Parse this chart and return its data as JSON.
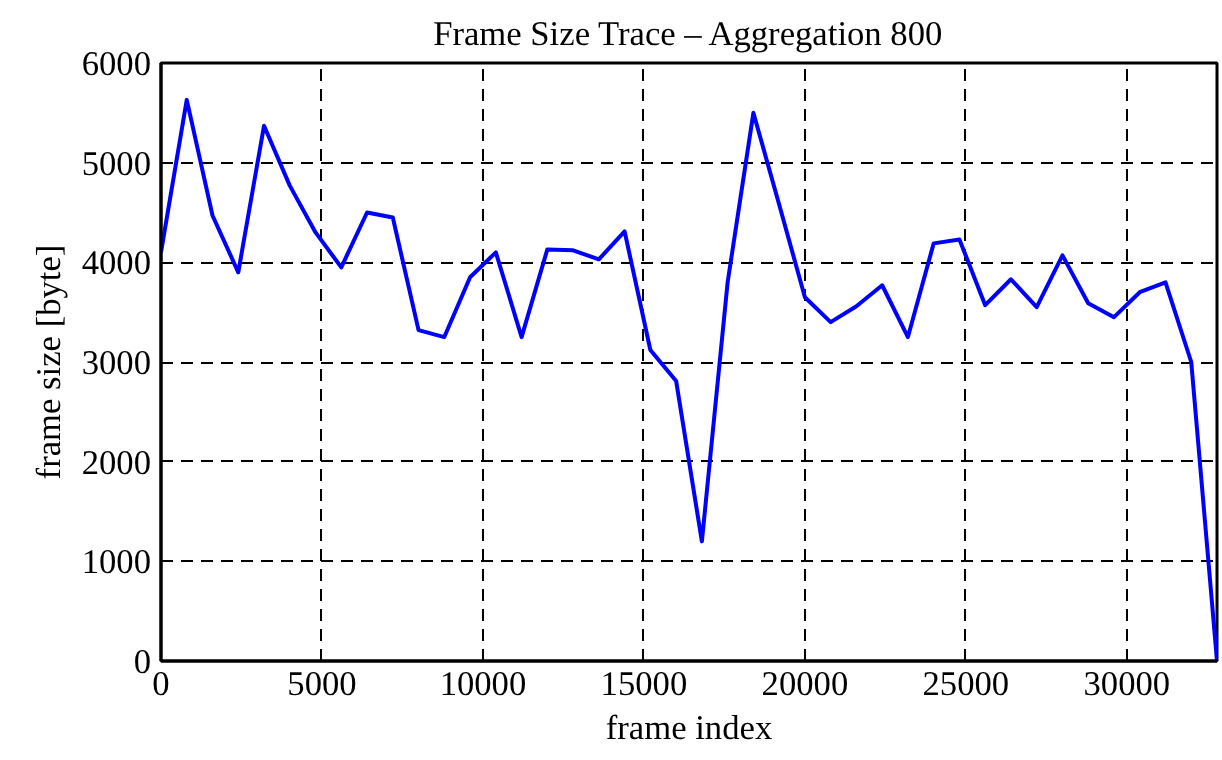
{
  "chart_data": {
    "type": "line",
    "title": "Frame Size Trace – Aggregation 800",
    "xlabel": "frame index",
    "ylabel": "frame size [byte]",
    "x": [
      0,
      800,
      1600,
      2400,
      3200,
      4000,
      4800,
      5600,
      6400,
      7200,
      8000,
      8800,
      9600,
      10400,
      11200,
      12000,
      12800,
      13600,
      14400,
      15200,
      16000,
      16800,
      17600,
      18400,
      19200,
      20000,
      20800,
      21600,
      22400,
      23200,
      24000,
      24800,
      25600,
      26400,
      27200,
      28000,
      28800,
      29600,
      30400,
      31200,
      32000,
      32800
    ],
    "series": [
      {
        "color": "#0000ff",
        "values": [
          4100,
          5630,
          4470,
          3900,
          5370,
          4770,
          4300,
          3950,
          4500,
          4450,
          3320,
          3250,
          3850,
          4100,
          3250,
          4130,
          4120,
          4030,
          4310,
          3120,
          2810,
          1200,
          3800,
          5500,
          4580,
          3650,
          3400,
          3560,
          3770,
          3250,
          4190,
          4230,
          3570,
          3830,
          3550,
          4070,
          3590,
          3450,
          3700,
          3800,
          3000,
          0
        ]
      }
    ],
    "xlim": [
      0,
      32800
    ],
    "ylim": [
      0,
      6000
    ],
    "xticks": [
      0,
      5000,
      10000,
      15000,
      20000,
      25000,
      30000
    ],
    "yticks": [
      0,
      1000,
      2000,
      3000,
      4000,
      5000,
      6000
    ],
    "grid": true,
    "line_style": "solid",
    "marker": "none"
  }
}
